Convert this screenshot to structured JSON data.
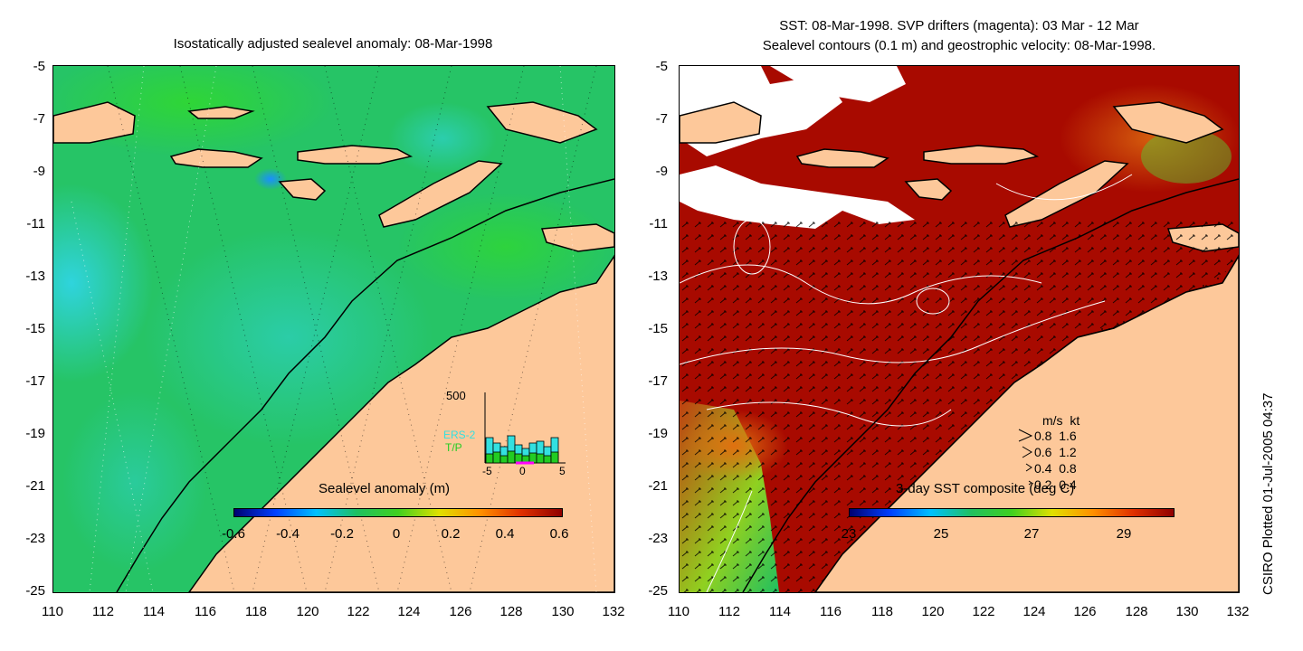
{
  "left_panel": {
    "title": "Isostatically adjusted sealevel anomaly: 08-Mar-1998",
    "y_ticks": [
      "-5",
      "-7",
      "-9",
      "-11",
      "-13",
      "-15",
      "-17",
      "-19",
      "-21",
      "-23",
      "-25"
    ],
    "x_ticks": [
      "110",
      "112",
      "114",
      "116",
      "118",
      "120",
      "122",
      "124",
      "126",
      "128",
      "130",
      "132"
    ],
    "colorbar": {
      "title": "Sealevel anomaly (m)",
      "labels": [
        "-0.6",
        "-0.4",
        "-0.2",
        "0",
        "0.2",
        "0.4",
        "0.6"
      ]
    },
    "histogram": {
      "ymax_label": "500",
      "series": [
        "ERS-2",
        "T/P"
      ],
      "x_labels": [
        "-5",
        "0",
        "5"
      ],
      "series_colors": [
        "#33e0e0",
        "#22cc22"
      ]
    }
  },
  "right_panel": {
    "title_line1": "SST: 08-Mar-1998. SVP drifters (magenta): 03 Mar - 12 Mar",
    "title_line2": "Sealevel contours (0.1 m) and geostrophic velocity: 08-Mar-1998.",
    "y_ticks": [
      "-5",
      "-7",
      "-9",
      "-11",
      "-13",
      "-15",
      "-17",
      "-19",
      "-21",
      "-23",
      "-25"
    ],
    "x_ticks": [
      "110",
      "112",
      "114",
      "116",
      "118",
      "120",
      "122",
      "124",
      "126",
      "128",
      "130",
      "132"
    ],
    "colorbar": {
      "title": "3-day SST composite (deg C)",
      "labels": [
        "23",
        "25",
        "27",
        "29"
      ]
    },
    "velocity_legend": {
      "header": "m/s  kt",
      "rows": [
        "0.8  1.6",
        "0.6  1.2",
        "0.4  0.8",
        "0.2  0.4"
      ]
    }
  },
  "credit": "CSIRO Plotted 01-Jul-2005 04:37",
  "colors": {
    "land": "#fdc89a",
    "ocean_left": "#22c060",
    "ocean_right": "#a80a00",
    "cloud": "#ffffff"
  }
}
